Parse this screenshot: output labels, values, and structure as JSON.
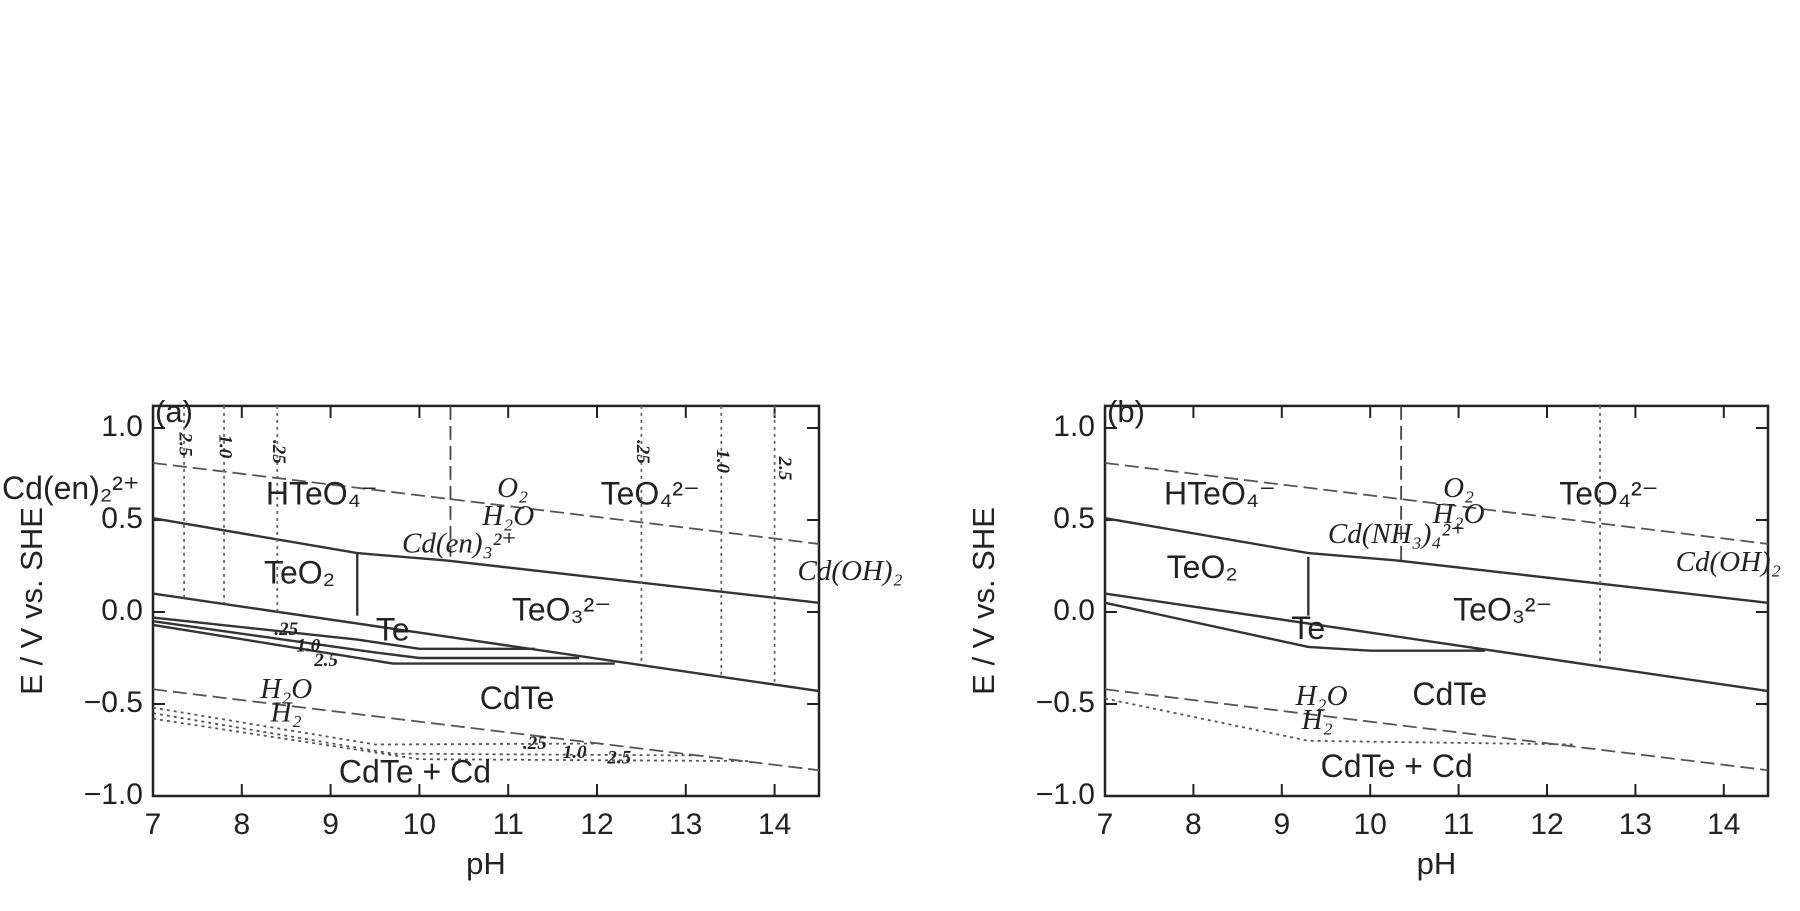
{
  "chart_data": [
    {
      "type": "line",
      "title": "(a)",
      "x_label": "pH",
      "y_label": "E / V vs. SHE",
      "xlim": [
        7,
        14.5
      ],
      "xticks": [
        7,
        8,
        9,
        10,
        11,
        12,
        13,
        14
      ],
      "ylim": [
        -1,
        1.12
      ],
      "yticks": [
        {
          "value": 1,
          "label": "1.0"
        },
        {
          "value": 0.5,
          "label": "0.5"
        },
        {
          "value": 0,
          "label": "0.0"
        },
        {
          "value": -0.5,
          "label": "−0.5"
        },
        {
          "value": -1,
          "label": "−1.0"
        }
      ],
      "grid": false,
      "series": [
        {
          "color": "#555",
          "style": "dashed",
          "x": [
            7,
            14.5
          ],
          "values": [
            0.81,
            0.37
          ]
        },
        {
          "color": "#333",
          "style": "solid",
          "x": [
            7,
            9.3,
            10.3,
            14.5
          ],
          "values": [
            0.51,
            0.32,
            0.28,
            0.05
          ]
        },
        {
          "color": "#333",
          "style": "solid",
          "x": [
            9.3,
            9.3
          ],
          "values": [
            0.32,
            -0.02
          ]
        },
        {
          "color": "#444",
          "style": "dashed",
          "x": [
            10.35,
            10.35
          ],
          "values": [
            1.12,
            0.3
          ]
        },
        {
          "color": "#333",
          "style": "solid",
          "x": [
            7,
            14.5
          ],
          "values": [
            0.1,
            -0.43
          ]
        },
        {
          "color": "#333",
          "style": "solid",
          "x": [
            7,
            9.3,
            10,
            11.3
          ],
          "values": [
            -0.03,
            -0.15,
            -0.2,
            -0.2
          ]
        },
        {
          "color": "#333",
          "style": "solid",
          "x": [
            7,
            9.5,
            10,
            11.8
          ],
          "values": [
            -0.05,
            -0.22,
            -0.25,
            -0.25
          ]
        },
        {
          "color": "#333",
          "style": "solid",
          "x": [
            7,
            9.7,
            12.2
          ],
          "values": [
            -0.07,
            -0.28,
            -0.28
          ]
        },
        {
          "color": "#555",
          "style": "dashed",
          "x": [
            7,
            14.5
          ],
          "values": [
            -0.42,
            -0.86
          ]
        },
        {
          "color": "#555",
          "style": "dotted",
          "x": [
            7,
            9.5,
            12
          ],
          "values": [
            -0.52,
            -0.72,
            -0.715
          ]
        },
        {
          "color": "#555",
          "style": "dotted",
          "x": [
            7,
            9.7,
            13.2
          ],
          "values": [
            -0.55,
            -0.77,
            -0.78
          ]
        },
        {
          "color": "#555",
          "style": "dotted",
          "x": [
            7,
            10,
            13.7
          ],
          "values": [
            -0.58,
            -0.8,
            -0.81
          ]
        },
        {
          "color": "#666",
          "style": "dotted",
          "x": [
            7.35,
            7.35
          ],
          "values": [
            1.12,
            0.075
          ]
        },
        {
          "color": "#666",
          "style": "dotted",
          "x": [
            7.8,
            7.8
          ],
          "values": [
            1.12,
            0.045
          ]
        },
        {
          "color": "#666",
          "style": "dotted",
          "x": [
            8.4,
            8.4
          ],
          "values": [
            1.12,
            0.0
          ]
        },
        {
          "color": "#666",
          "style": "dotted",
          "x": [
            12.5,
            12.5
          ],
          "values": [
            1.12,
            -0.289
          ]
        },
        {
          "color": "#666",
          "style": "dotted",
          "x": [
            13.4,
            13.4
          ],
          "values": [
            1.12,
            -0.352
          ]
        },
        {
          "color": "#666",
          "style": "dotted",
          "x": [
            14.0,
            14.0
          ],
          "values": [
            1.12,
            -0.395
          ]
        }
      ],
      "annotations": [
        "Cd(en)₂²⁺",
        "HTeO₄⁻",
        "O₂",
        "H₂O",
        "TeO₄²⁻",
        "Cd(en)₃²⁺",
        "Cd(OH)₂",
        "TeO₂",
        "TeO₃²⁻",
        "Te",
        ".25",
        "1.0",
        "2.5",
        "H₂O",
        "H₂",
        "CdTe",
        ".25",
        "1.0",
        "2.5",
        "CdTe + Cd",
        "2.5",
        "1.0",
        ".25",
        ".25",
        "1.0",
        "2.5"
      ]
    },
    {
      "type": "line",
      "title": "(b)",
      "x_label": "pH",
      "y_label": "E / V vs. SHE",
      "xlim": [
        7,
        14.5
      ],
      "xticks": [
        7,
        8,
        9,
        10,
        11,
        12,
        13,
        14
      ],
      "ylim": [
        -1,
        1.12
      ],
      "yticks": [
        {
          "value": 1,
          "label": "1.0"
        },
        {
          "value": 0.5,
          "label": "0.5"
        },
        {
          "value": 0,
          "label": "0.0"
        },
        {
          "value": -0.5,
          "label": "−0.5"
        },
        {
          "value": -1,
          "label": "−1.0"
        }
      ],
      "grid": false,
      "series": [
        {
          "color": "#555",
          "style": "dashed",
          "x": [
            7,
            14.5
          ],
          "values": [
            0.81,
            0.37
          ]
        },
        {
          "color": "#333",
          "style": "solid",
          "x": [
            7,
            9.3,
            10.3,
            14.5
          ],
          "values": [
            0.51,
            0.32,
            0.28,
            0.05
          ]
        },
        {
          "color": "#333",
          "style": "solid",
          "x": [
            9.3,
            9.3
          ],
          "values": [
            0.3,
            -0.02
          ]
        },
        {
          "color": "#444",
          "style": "dashed",
          "x": [
            10.35,
            10.35
          ],
          "values": [
            1.12,
            0.28
          ]
        },
        {
          "color": "#333",
          "style": "solid",
          "x": [
            7,
            14.5
          ],
          "values": [
            0.1,
            -0.43
          ]
        },
        {
          "color": "#333",
          "style": "solid",
          "x": [
            7,
            9.3,
            10,
            11.3
          ],
          "values": [
            0.05,
            -0.19,
            -0.21,
            -0.21
          ]
        },
        {
          "color": "#555",
          "style": "dashed",
          "x": [
            7,
            14.5
          ],
          "values": [
            -0.42,
            -0.86
          ]
        },
        {
          "color": "#555",
          "style": "dotted",
          "x": [
            7,
            9.3,
            12.3
          ],
          "values": [
            -0.47,
            -0.7,
            -0.72
          ]
        },
        {
          "color": "#666",
          "style": "dotted",
          "x": [
            12.6,
            12.6
          ],
          "values": [
            1.12,
            -0.29
          ]
        }
      ],
      "annotations": [
        "HTeO₄⁻",
        "O₂",
        "H₂O",
        "TeO₄²⁻",
        "Cd(NH₃)₄²⁺",
        "Cd(OH)₂",
        "TeO₂",
        "TeO₃²⁻",
        "Te",
        "H₂O",
        "H₂",
        "CdTe",
        "CdTe + Cd"
      ]
    }
  ]
}
